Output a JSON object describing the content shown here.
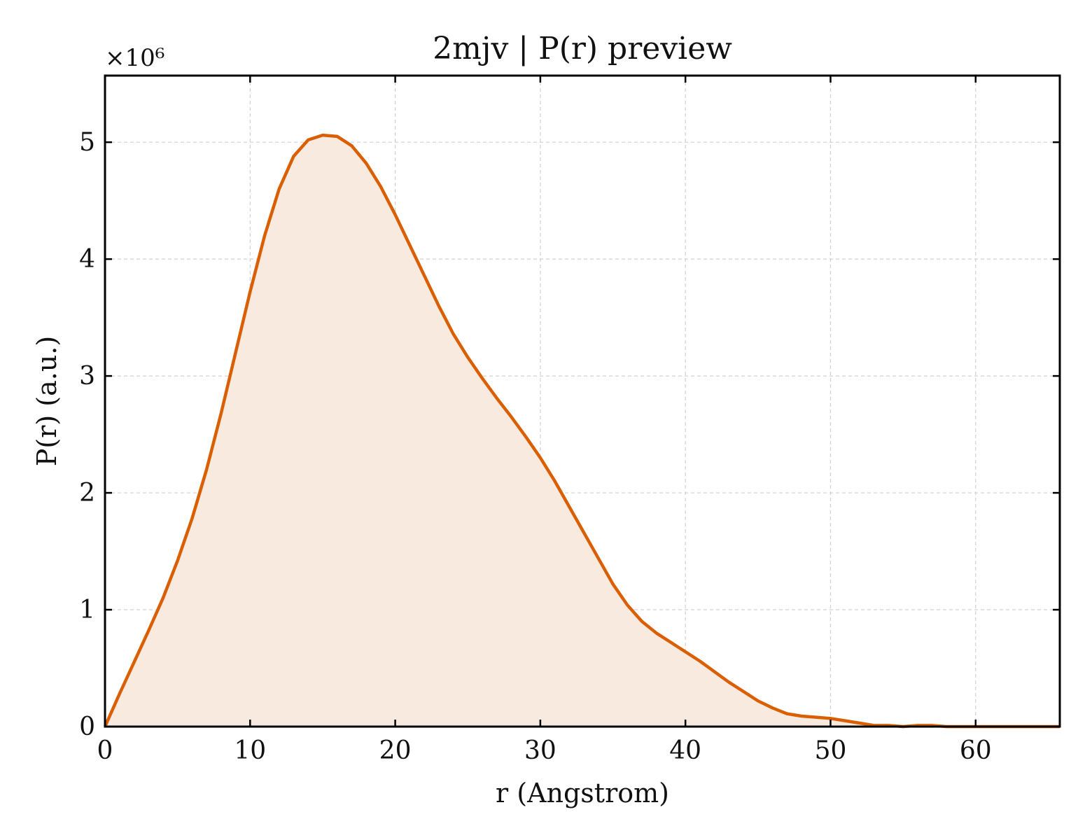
{
  "chart_data": {
    "type": "area",
    "title": "2mjv | P(r) preview",
    "xlabel": "r (Angstrom)",
    "ylabel": "P(r) (a.u.)",
    "y_scale_label": "×10⁶",
    "xlim": [
      0,
      65.8
    ],
    "ylim": [
      0,
      5.57
    ],
    "x_ticks": [
      0,
      10,
      20,
      30,
      40,
      50,
      60
    ],
    "y_ticks": [
      0,
      1,
      2,
      3,
      4,
      5
    ],
    "grid": true,
    "legend": "none",
    "line_color": "#d95f02",
    "fill_color": "#f9eadf",
    "series": [
      {
        "x": [
          0,
          1,
          2,
          3,
          4,
          5,
          6,
          7,
          8,
          9,
          10,
          11,
          12,
          13,
          14,
          15,
          16,
          17,
          18,
          19,
          20,
          21,
          22,
          23,
          24,
          25,
          26,
          27,
          28,
          29,
          30,
          31,
          32,
          33,
          34,
          35,
          36,
          37,
          38,
          39,
          40,
          41,
          42,
          43,
          44,
          45,
          46,
          47,
          48,
          49,
          50,
          51,
          52,
          53,
          54,
          55,
          56,
          57,
          58,
          59,
          60,
          61,
          62,
          63,
          64,
          65,
          65.8
        ],
        "y": [
          0,
          0.28,
          0.55,
          0.82,
          1.1,
          1.42,
          1.78,
          2.2,
          2.68,
          3.2,
          3.72,
          4.2,
          4.6,
          4.88,
          5.02,
          5.06,
          5.05,
          4.97,
          4.82,
          4.62,
          4.38,
          4.12,
          3.86,
          3.6,
          3.36,
          3.16,
          2.98,
          2.81,
          2.65,
          2.48,
          2.3,
          2.1,
          1.88,
          1.66,
          1.44,
          1.22,
          1.04,
          0.9,
          0.8,
          0.72,
          0.64,
          0.56,
          0.47,
          0.38,
          0.3,
          0.22,
          0.16,
          0.11,
          0.09,
          0.08,
          0.07,
          0.05,
          0.03,
          0.01,
          0.01,
          0.0,
          0.01,
          0.01,
          0.0,
          0.0,
          0.0,
          0.0,
          0.0,
          0.0,
          0.0,
          0.0,
          0.0
        ]
      }
    ]
  }
}
